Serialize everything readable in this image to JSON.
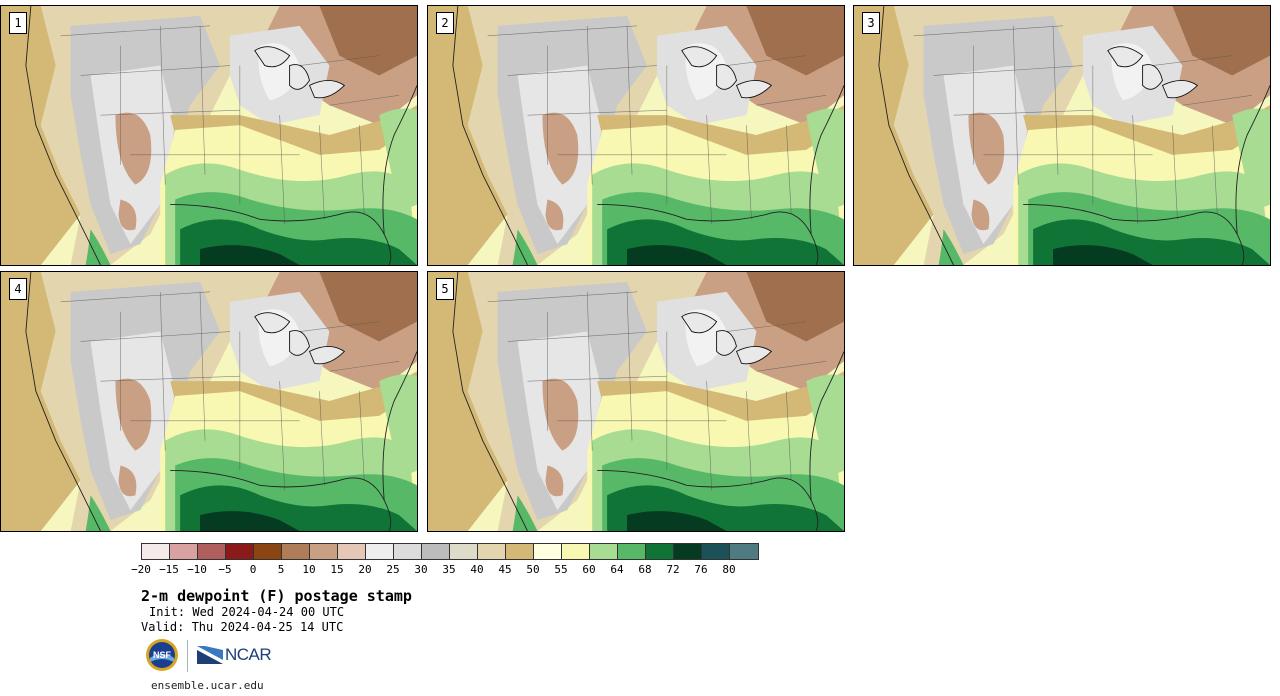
{
  "panels": [
    {
      "label": "1"
    },
    {
      "label": "2"
    },
    {
      "label": "3"
    },
    {
      "label": "4"
    },
    {
      "label": "5"
    }
  ],
  "colorbar": {
    "colors": [
      "#f5eaea",
      "#d8a2a2",
      "#b05e5e",
      "#8b1a1a",
      "#8b4513",
      "#b07d5a",
      "#c9a084",
      "#e4c8b5",
      "#eeeeee",
      "#dcdcdc",
      "#bcbcbc",
      "#dedcc8",
      "#e3d5ad",
      "#d4b876",
      "#ffffe2",
      "#f8f8b2",
      "#a7dc92",
      "#57b867",
      "#0f7436",
      "#053b20",
      "#1b5157",
      "#4f7c82"
    ],
    "ticks": [
      "−20",
      "−15",
      "−10",
      "−5",
      "0",
      "5",
      "10",
      "15",
      "20",
      "25",
      "30",
      "35",
      "40",
      "45",
      "50",
      "55",
      "60",
      "64",
      "68",
      "72",
      "76",
      "80"
    ]
  },
  "title": "2-m dewpoint (F) postage stamp",
  "init": "Init: Wed 2024-04-24 00 UTC",
  "valid": "Valid: Thu 2024-04-25 14 UTC",
  "logo": {
    "nsf": "NSF",
    "ncar": "NCAR"
  },
  "website": "ensemble.ucar.edu"
}
